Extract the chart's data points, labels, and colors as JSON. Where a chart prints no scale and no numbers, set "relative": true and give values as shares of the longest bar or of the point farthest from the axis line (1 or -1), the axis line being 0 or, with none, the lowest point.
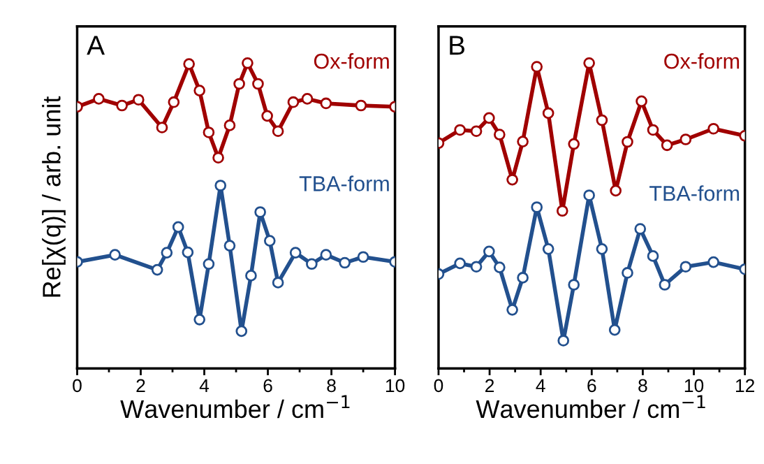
{
  "chart_data": [
    {
      "type": "line",
      "title": "A",
      "xlabel": "Wavenumber / cm$^{−1}$",
      "ylabel": "Re[χ(q)] / arb. unit",
      "relative": true,
      "xlim": [
        0,
        10
      ],
      "xticks": [
        0,
        2,
        4,
        6,
        8,
        10
      ],
      "tick_labels": "x",
      "marker": "circle",
      "series": [
        {
          "name": "Ox-form",
          "color": "#a00000",
          "x": [
            0,
            0.68,
            1.41,
            1.93,
            2.67,
            3.04,
            3.52,
            3.85,
            4.14,
            4.44,
            4.8,
            5.1,
            5.36,
            5.69,
            5.98,
            6.32,
            6.8,
            7.24,
            7.83,
            8.93,
            10
          ],
          "values": [
            0.857,
            0.883,
            0.861,
            0.88,
            0.789,
            0.872,
            0.997,
            0.91,
            0.773,
            0.69,
            0.796,
            0.932,
            1.0,
            0.932,
            0.827,
            0.777,
            0.872,
            0.883,
            0.868,
            0.861,
            0.857
          ]
        },
        {
          "name": "TBA-form",
          "color": "#22508e",
          "x": [
            0,
            1.19,
            2.52,
            2.82,
            3.18,
            3.48,
            3.85,
            4.14,
            4.51,
            4.8,
            5.17,
            5.47,
            5.76,
            6.06,
            6.32,
            6.87,
            7.38,
            7.83,
            8.42,
            9.0,
            10
          ],
          "values": [
            0.349,
            0.372,
            0.323,
            0.379,
            0.463,
            0.38,
            0.16,
            0.342,
            0.599,
            0.402,
            0.122,
            0.304,
            0.512,
            0.418,
            0.281,
            0.379,
            0.342,
            0.372,
            0.346,
            0.365,
            0.349
          ]
        }
      ]
    },
    {
      "type": "line",
      "title": "B",
      "xlabel": "Wavenumber / cm$^{−1}$",
      "relative": true,
      "xlim": [
        0,
        12
      ],
      "xticks": [
        0,
        2,
        4,
        6,
        8,
        10,
        12
      ],
      "tick_labels": "x",
      "marker": "circle",
      "series": [
        {
          "name": "Ox-form",
          "color": "#a00000",
          "x": [
            0,
            0.84,
            1.48,
            1.98,
            2.39,
            2.89,
            3.3,
            3.85,
            4.3,
            4.85,
            5.3,
            5.9,
            6.4,
            6.94,
            7.4,
            7.95,
            8.4,
            8.95,
            9.68,
            10.77,
            12
          ],
          "values": [
            0.738,
            0.781,
            0.777,
            0.82,
            0.766,
            0.618,
            0.743,
            0.988,
            0.836,
            0.516,
            0.735,
            1.0,
            0.813,
            0.582,
            0.742,
            0.875,
            0.781,
            0.731,
            0.75,
            0.785,
            0.762
          ]
        },
        {
          "name": "TBA-form",
          "color": "#22508e",
          "x": [
            0,
            0.84,
            1.48,
            1.98,
            2.39,
            2.89,
            3.3,
            3.85,
            4.3,
            4.89,
            5.3,
            5.9,
            6.4,
            6.9,
            7.4,
            7.9,
            8.4,
            8.86,
            9.68,
            10.77,
            12
          ],
          "values": [
            0.309,
            0.344,
            0.333,
            0.383,
            0.331,
            0.192,
            0.297,
            0.528,
            0.391,
            0.091,
            0.274,
            0.567,
            0.391,
            0.126,
            0.313,
            0.457,
            0.368,
            0.274,
            0.333,
            0.348,
            0.325
          ]
        }
      ]
    }
  ]
}
